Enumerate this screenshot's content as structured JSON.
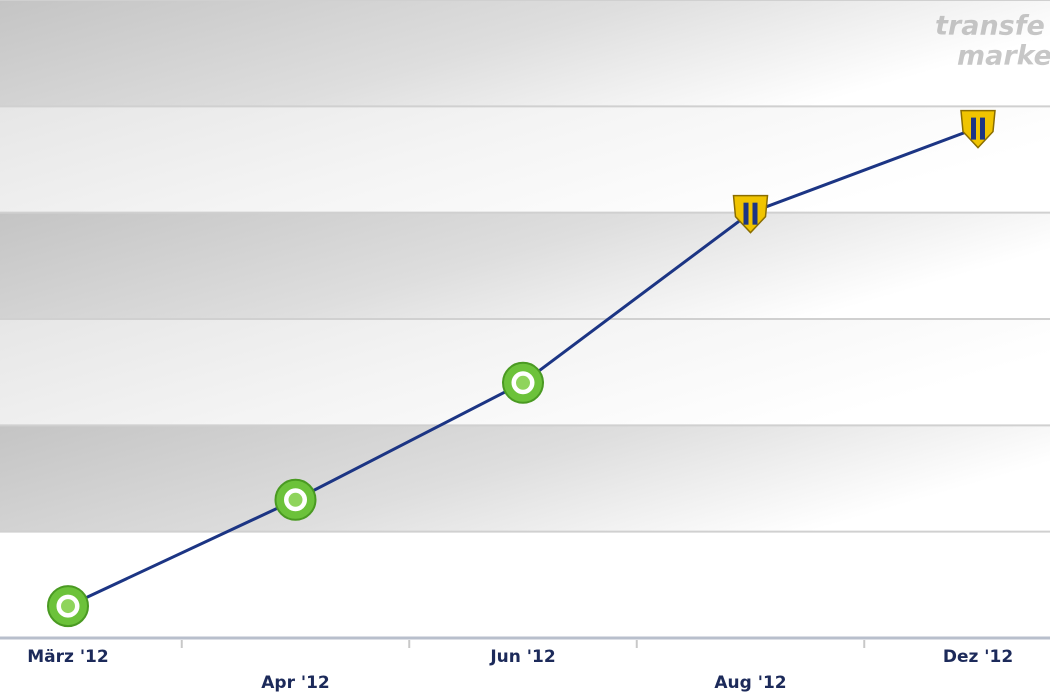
{
  "chart_data": {
    "type": "line",
    "categories": [
      "März '12",
      "Apr '12",
      "Jun '12",
      "Aug '12",
      "Dez '12"
    ],
    "series": [
      {
        "color": "#1c3584",
        "values": [
          0.3,
          1.3,
          2.4,
          4.0,
          4.8
        ]
      }
    ],
    "marker_colors": [
      "#6cc23a",
      "#6cc23a",
      "#6cc23a",
      "#f0c400",
      "#f0c400"
    ],
    "ylim": [
      0,
      6
    ],
    "yticks": [
      0,
      1,
      2,
      3,
      4,
      5,
      6
    ],
    "grid": true,
    "watermark": [
      "transfe",
      "marke"
    ]
  }
}
